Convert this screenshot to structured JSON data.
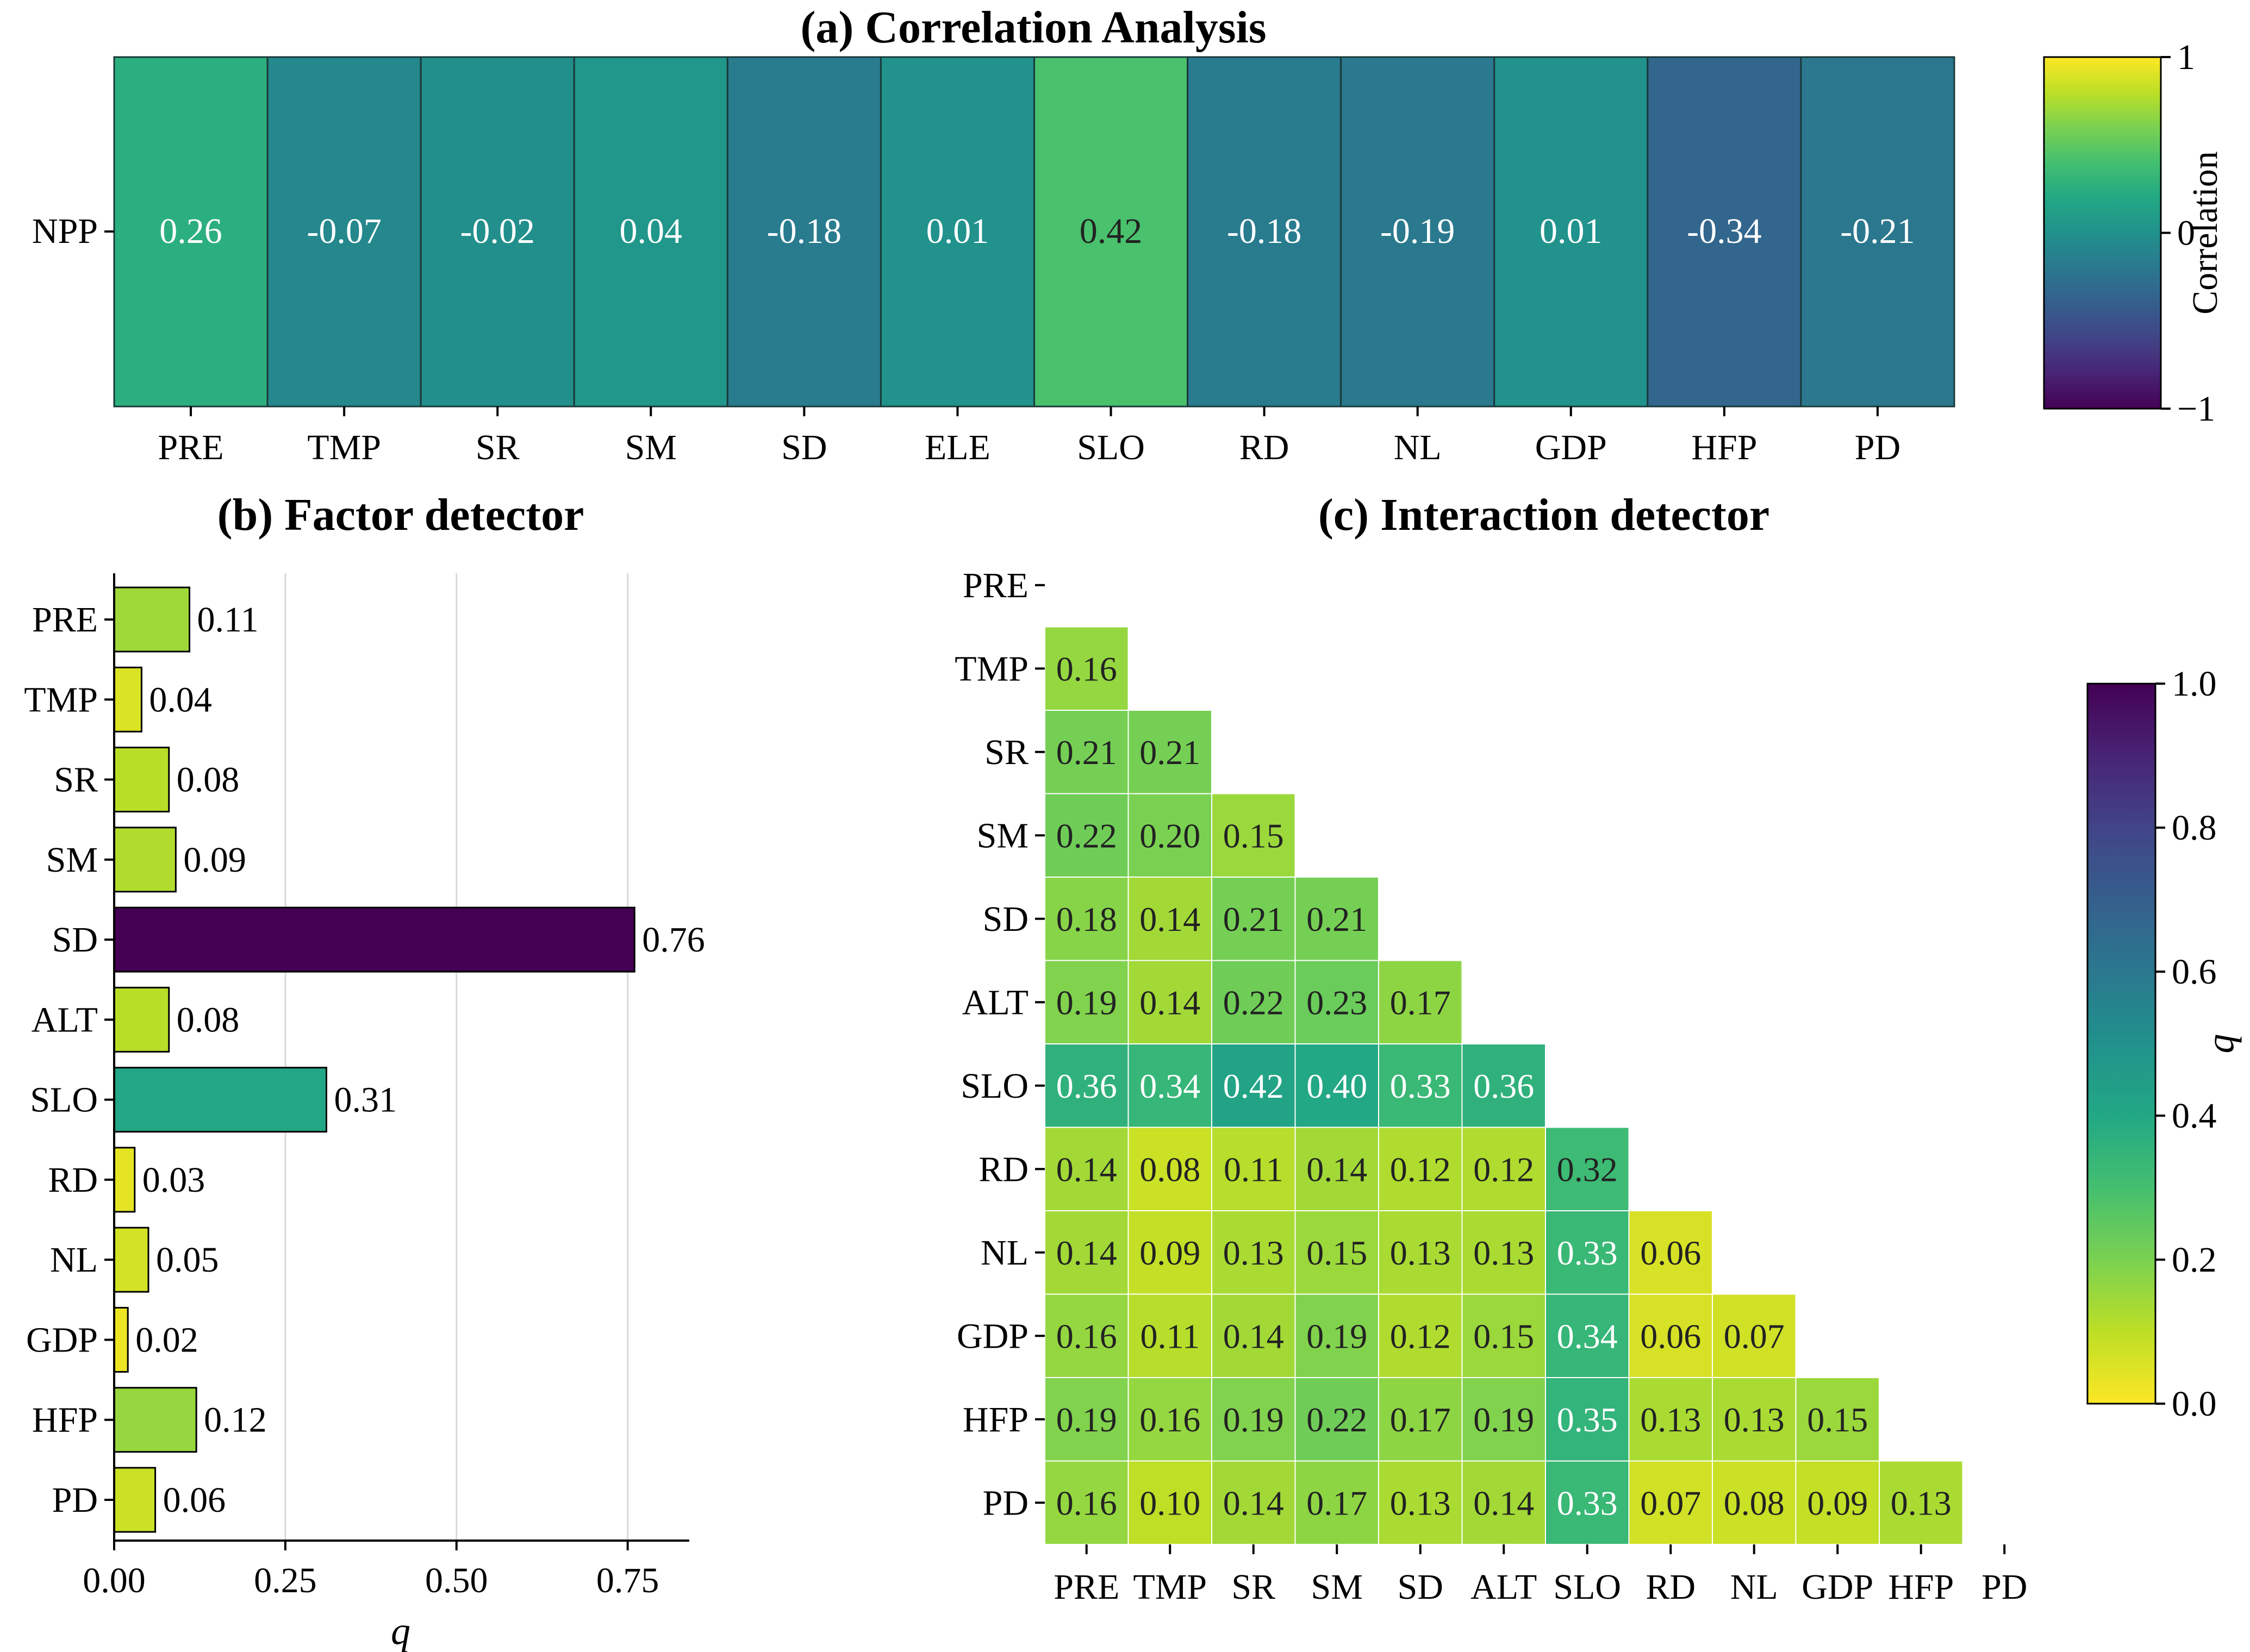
{
  "chart_data": [
    {
      "type": "heatmap",
      "title": "(a) Correlation Analysis",
      "row_labels": [
        "NPP"
      ],
      "columns": [
        "PRE",
        "TMP",
        "SR",
        "SM",
        "SD",
        "ELE",
        "SLO",
        "RD",
        "NL",
        "GDP",
        "HFP",
        "PD"
      ],
      "values": [
        0.26,
        -0.07,
        -0.02,
        0.04,
        -0.18,
        0.01,
        0.42,
        -0.18,
        -0.19,
        0.01,
        -0.34,
        -0.21
      ],
      "value_labels": [
        "0.26",
        "-0.07",
        "-0.02",
        "0.04",
        "-0.18",
        "0.01",
        "0.42",
        "-0.18",
        "-0.19",
        "0.01",
        "-0.34",
        "-0.21"
      ],
      "colorbar": {
        "label": "Correlation",
        "range": [
          -1,
          1
        ],
        "ticks": [
          1,
          0,
          -1
        ],
        "tick_labels": [
          "1",
          "0",
          "−1"
        ],
        "colormap": "viridis"
      }
    },
    {
      "type": "bar",
      "orientation": "horizontal",
      "title": "(b) Factor detector",
      "categories": [
        "PRE",
        "TMP",
        "SR",
        "SM",
        "SD",
        "ALT",
        "SLO",
        "RD",
        "NL",
        "GDP",
        "HFP",
        "PD"
      ],
      "values": [
        0.11,
        0.04,
        0.08,
        0.09,
        0.76,
        0.08,
        0.31,
        0.03,
        0.05,
        0.02,
        0.12,
        0.06
      ],
      "value_labels": [
        "0.11",
        "0.04",
        "0.08",
        "0.09",
        "0.76",
        "0.08",
        "0.31",
        "0.03",
        "0.05",
        "0.02",
        "0.12",
        "0.06"
      ],
      "xlabel": "q",
      "xlim": [
        0,
        0.84
      ],
      "xticks": [
        0,
        0.25,
        0.5,
        0.75
      ],
      "xtick_labels": [
        "0.00",
        "0.25",
        "0.50",
        "0.75"
      ],
      "grid": "vertical",
      "colormap": "viridis_r",
      "color_range": [
        0,
        0.76
      ]
    },
    {
      "type": "heatmap",
      "title": "(c) Interaction detector",
      "labels": [
        "PRE",
        "TMP",
        "SR",
        "SM",
        "SD",
        "ALT",
        "SLO",
        "RD",
        "NL",
        "GDP",
        "HFP",
        "PD"
      ],
      "matrix_lower": [
        [],
        [
          "0.16"
        ],
        [
          "0.21",
          "0.21"
        ],
        [
          "0.22",
          "0.20",
          "0.15"
        ],
        [
          "0.18",
          "0.14",
          "0.21",
          "0.21"
        ],
        [
          "0.19",
          "0.14",
          "0.22",
          "0.23",
          "0.17"
        ],
        [
          "0.36",
          "0.34",
          "0.42",
          "0.40",
          "0.33",
          "0.36"
        ],
        [
          "0.14",
          "0.08",
          "0.11",
          "0.14",
          "0.12",
          "0.12",
          "0.32"
        ],
        [
          "0.14",
          "0.09",
          "0.13",
          "0.15",
          "0.13",
          "0.13",
          "0.33",
          "0.06"
        ],
        [
          "0.16",
          "0.11",
          "0.14",
          "0.19",
          "0.12",
          "0.15",
          "0.34",
          "0.06",
          "0.07"
        ],
        [
          "0.19",
          "0.16",
          "0.19",
          "0.22",
          "0.17",
          "0.19",
          "0.35",
          "0.13",
          "0.13",
          "0.15"
        ],
        [
          "0.16",
          "0.10",
          "0.14",
          "0.17",
          "0.13",
          "0.14",
          "0.33",
          "0.07",
          "0.08",
          "0.09",
          "0.13"
        ]
      ],
      "colorbar": {
        "label": "q",
        "range": [
          0,
          1
        ],
        "ticks": [
          1.0,
          0.8,
          0.6,
          0.4,
          0.2,
          0.0
        ],
        "tick_labels": [
          "1.0",
          "0.8",
          "0.6",
          "0.4",
          "0.2",
          "0.0"
        ],
        "colormap": "viridis_r"
      }
    }
  ]
}
